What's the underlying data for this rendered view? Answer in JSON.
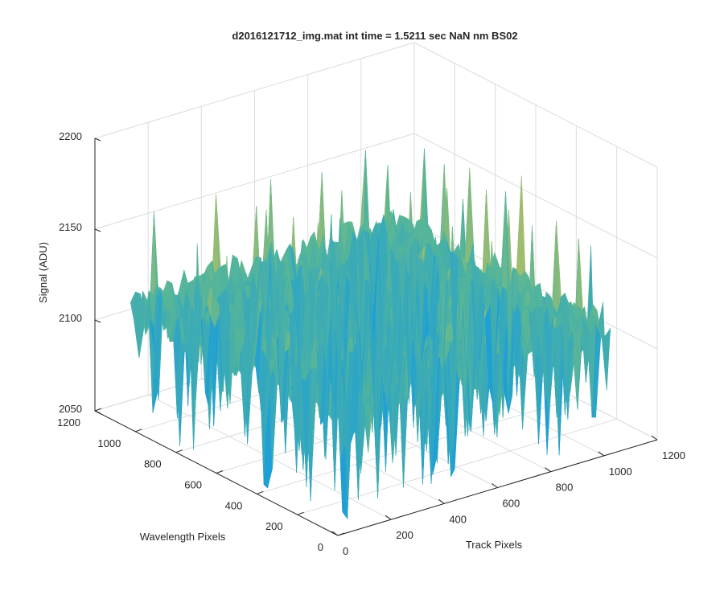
{
  "chart_data": {
    "type": "surface",
    "title": "d2016121712_img.mat int time = 1.5211 sec  NaN nm BS02",
    "xlabel": "Track Pixels",
    "ylabel": "Wavelength Pixels",
    "zlabel": "Signal (ADU)",
    "xlim": [
      0,
      1200
    ],
    "ylim": [
      0,
      1200
    ],
    "zlim": [
      2050,
      2200
    ],
    "x_ticks": [
      "0",
      "200",
      "400",
      "600",
      "800",
      "1000",
      "1200"
    ],
    "y_ticks": [
      "0",
      "200",
      "400",
      "600",
      "800",
      "1000",
      "1200"
    ],
    "z_ticks": [
      "2050",
      "2100",
      "2150",
      "2200"
    ],
    "surface": {
      "x_range": [
        0,
        1024
      ],
      "y_range": [
        0,
        1024
      ],
      "z_mean": 2118,
      "z_typical_range": [
        2095,
        2150
      ],
      "z_min_spikes": 2050,
      "z_max_spikes": 2180
    },
    "grid": true,
    "colormap": "parula",
    "colors": {
      "high": "#e3c04a",
      "mid": "#5ab795",
      "low": "#1e9fd6",
      "axis": "#262626",
      "grid": "#dcdcdc"
    }
  }
}
